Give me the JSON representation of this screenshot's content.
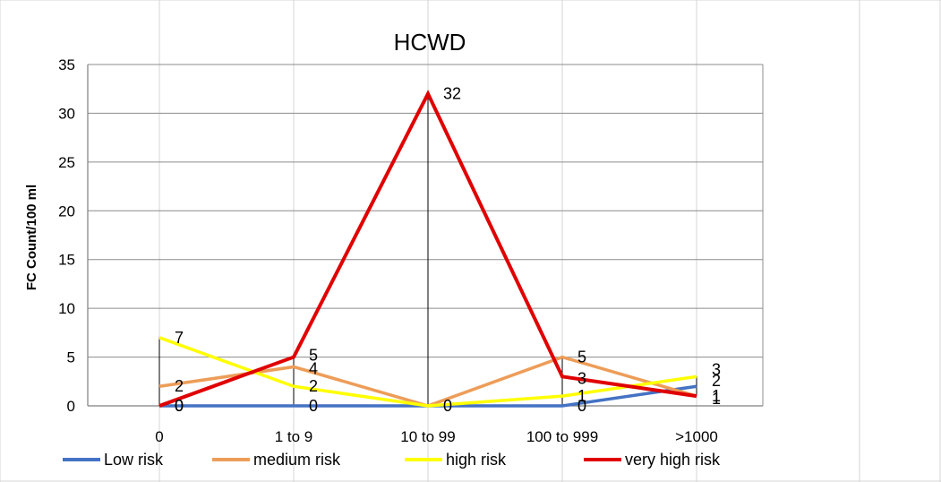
{
  "chart_data": {
    "type": "line",
    "title": "HCWD",
    "ylabel": "FC Count/100 ml",
    "xlabel": "",
    "ylim": [
      0,
      35
    ],
    "yticks": [
      0,
      5,
      10,
      15,
      20,
      25,
      30,
      35
    ],
    "categories": [
      "0",
      "1 to 9",
      "10 to 99",
      "100 to 999",
      ">1000"
    ],
    "grid": true,
    "legend_position": "bottom",
    "drop_lines": true,
    "series": [
      {
        "name": "Low risk",
        "color": "#4472c4",
        "values": [
          0,
          0,
          0,
          0,
          2
        ],
        "show_labels": [
          true,
          true,
          false,
          true,
          true
        ]
      },
      {
        "name": "medium risk",
        "color": "#ed9d58",
        "values": [
          2,
          4,
          0,
          5,
          1
        ],
        "show_labels": [
          true,
          true,
          false,
          true,
          true
        ]
      },
      {
        "name": "high risk",
        "color": "#ffff00",
        "values": [
          7,
          2,
          0,
          1,
          3
        ],
        "show_labels": [
          true,
          true,
          false,
          true,
          true
        ]
      },
      {
        "name": "very high risk",
        "color": "#e00000",
        "values": [
          0,
          5,
          32,
          3,
          1
        ],
        "show_labels": [
          true,
          true,
          true,
          true,
          true
        ]
      }
    ],
    "center_label": "0"
  }
}
